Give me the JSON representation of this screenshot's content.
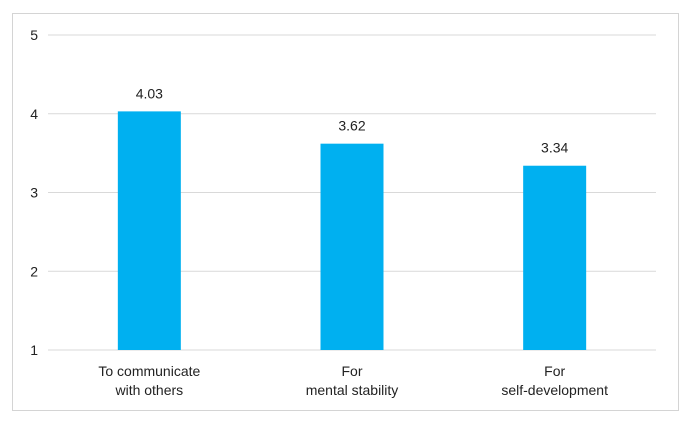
{
  "chart_data": {
    "type": "bar",
    "categories": [
      [
        "To communicate",
        "with others"
      ],
      [
        "For",
        "mental stability"
      ],
      [
        "For",
        "self-development"
      ]
    ],
    "values": [
      4.03,
      3.62,
      3.34
    ],
    "data_labels": [
      "4.03",
      "3.62",
      "3.34"
    ],
    "title": "",
    "xlabel": "",
    "ylabel": "",
    "ylim": [
      1,
      5
    ],
    "yticks": [
      1,
      2,
      3,
      4,
      5
    ],
    "grid": "horizontal",
    "legend": "none",
    "bar_color": "#00B0F0",
    "gridline_color": "#d9d9d9"
  }
}
